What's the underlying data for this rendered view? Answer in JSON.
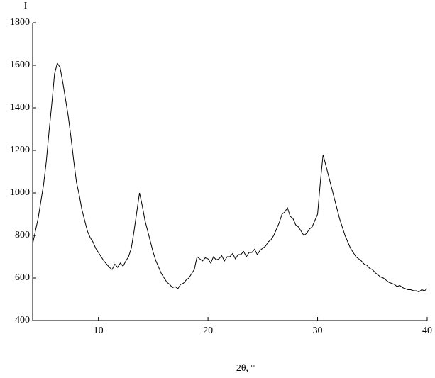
{
  "chart_data": {
    "type": "line",
    "x_label": "2θ, °",
    "y_label": "I",
    "x": [
      4,
      4.25,
      4.5,
      4.75,
      5,
      5.25,
      5.5,
      5.75,
      6,
      6.25,
      6.5,
      6.75,
      7,
      7.25,
      7.5,
      7.75,
      8,
      8.25,
      8.5,
      8.75,
      9,
      9.25,
      9.5,
      9.75,
      10,
      10.25,
      10.5,
      10.75,
      11,
      11.25,
      11.5,
      11.75,
      12,
      12.25,
      12.5,
      12.75,
      13,
      13.25,
      13.5,
      13.75,
      14,
      14.25,
      14.5,
      14.75,
      15,
      15.25,
      15.5,
      15.75,
      16,
      16.25,
      16.5,
      16.75,
      17,
      17.25,
      17.5,
      17.75,
      18,
      18.25,
      18.5,
      18.75,
      19,
      19.25,
      19.5,
      19.75,
      20,
      20.25,
      20.5,
      20.75,
      21,
      21.25,
      21.5,
      21.75,
      22,
      22.25,
      22.5,
      22.75,
      23,
      23.25,
      23.5,
      23.75,
      24,
      24.25,
      24.5,
      24.75,
      25,
      25.25,
      25.5,
      25.75,
      26,
      26.25,
      26.5,
      26.75,
      27,
      27.25,
      27.5,
      27.75,
      28,
      28.25,
      28.5,
      28.75,
      29,
      29.25,
      29.5,
      29.75,
      30,
      30.25,
      30.5,
      30.75,
      31,
      31.25,
      31.5,
      31.75,
      32,
      32.25,
      32.5,
      32.75,
      33,
      33.25,
      33.5,
      33.75,
      34,
      34.25,
      34.5,
      34.75,
      35,
      35.25,
      35.5,
      35.75,
      36,
      36.25,
      36.5,
      36.75,
      37,
      37.25,
      37.5,
      37.75,
      38,
      38.25,
      38.5,
      38.75,
      39,
      39.25,
      39.5,
      39.75,
      40
    ],
    "series": [
      {
        "color": "#000000",
        "values": [
          760,
          820,
          880,
          960,
          1040,
          1150,
          1290,
          1420,
          1560,
          1610,
          1590,
          1520,
          1440,
          1360,
          1260,
          1150,
          1050,
          990,
          920,
          870,
          820,
          790,
          770,
          740,
          720,
          700,
          680,
          665,
          650,
          640,
          665,
          650,
          670,
          655,
          680,
          700,
          740,
          820,
          910,
          1000,
          940,
          870,
          820,
          770,
          720,
          680,
          650,
          620,
          600,
          580,
          570,
          555,
          560,
          550,
          570,
          575,
          590,
          600,
          620,
          640,
          700,
          690,
          680,
          695,
          690,
          670,
          700,
          685,
          690,
          705,
          680,
          700,
          700,
          715,
          690,
          710,
          710,
          725,
          700,
          720,
          720,
          735,
          710,
          730,
          740,
          750,
          770,
          780,
          800,
          830,
          860,
          900,
          910,
          930,
          890,
          880,
          850,
          840,
          820,
          800,
          810,
          830,
          840,
          870,
          900,
          1050,
          1180,
          1130,
          1080,
          1030,
          980,
          930,
          880,
          840,
          800,
          770,
          740,
          720,
          700,
          690,
          680,
          665,
          660,
          645,
          640,
          625,
          615,
          605,
          600,
          590,
          580,
          575,
          570,
          560,
          565,
          555,
          550,
          545,
          545,
          540,
          540,
          535,
          545,
          540,
          550
        ]
      }
    ],
    "xlim": [
      4,
      40
    ],
    "ylim": [
      400,
      1800
    ],
    "xticks": [
      10,
      20,
      30,
      40
    ],
    "yticks": [
      400,
      600,
      800,
      1000,
      1200,
      1400,
      1600,
      1800
    ]
  }
}
